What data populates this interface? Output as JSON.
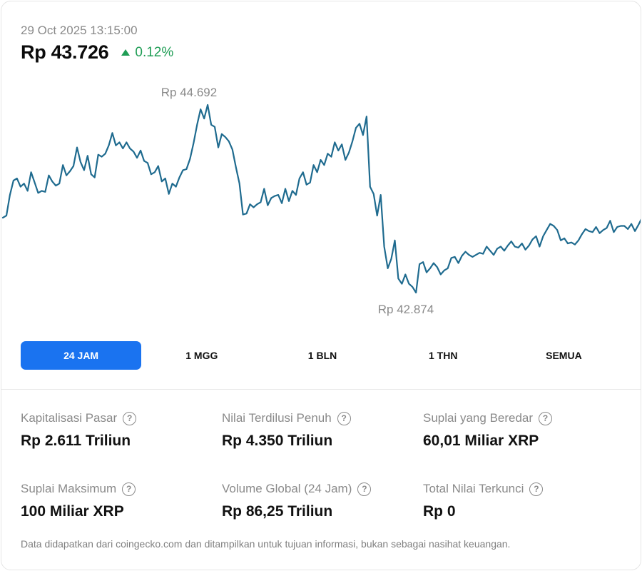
{
  "header": {
    "timestamp": "29 Oct 2025 13:15:00",
    "price": "Rp 43.726",
    "change": "0.12%",
    "change_direction": "up",
    "change_icon": "triangle-up-icon",
    "change_color": "#1f9d55"
  },
  "chart_data": {
    "type": "line",
    "series": [
      {
        "values": [
          43600,
          43620,
          43820,
          43960,
          43980,
          43900,
          43930,
          43860,
          44040,
          43940,
          43840,
          43860,
          43850,
          44010,
          43950,
          43910,
          43930,
          44110,
          44010,
          44050,
          44100,
          44280,
          44140,
          44060,
          44200,
          44020,
          43990,
          44210,
          44190,
          44220,
          44300,
          44420,
          44300,
          44330,
          44270,
          44330,
          44270,
          44240,
          44180,
          44250,
          44150,
          44130,
          44020,
          44040,
          44100,
          43950,
          43980,
          43830,
          43930,
          43900,
          43990,
          44060,
          44070,
          44170,
          44320,
          44500,
          44650,
          44560,
          44692,
          44500,
          44480,
          44280,
          44410,
          44380,
          44340,
          44260,
          44090,
          43930,
          43630,
          43640,
          43730,
          43700,
          43730,
          43750,
          43880,
          43720,
          43790,
          43810,
          43820,
          43740,
          43880,
          43760,
          43860,
          43820,
          43980,
          44040,
          43920,
          43940,
          44110,
          44040,
          44160,
          44110,
          44220,
          44190,
          44330,
          44250,
          44310,
          44160,
          44230,
          44340,
          44470,
          44510,
          44400,
          44580,
          43900,
          43830,
          43620,
          43820,
          43320,
          43110,
          43200,
          43380,
          43010,
          42960,
          43050,
          42960,
          42930,
          42874,
          43150,
          43170,
          43070,
          43110,
          43160,
          43120,
          43050,
          43090,
          43110,
          43210,
          43220,
          43160,
          43230,
          43270,
          43240,
          43220,
          43240,
          43260,
          43250,
          43320,
          43280,
          43240,
          43300,
          43320,
          43280,
          43330,
          43370,
          43320,
          43310,
          43350,
          43290,
          43330,
          43390,
          43420,
          43320,
          43420,
          43480,
          43540,
          43520,
          43480,
          43380,
          43400,
          43350,
          43360,
          43340,
          43380,
          43440,
          43490,
          43470,
          43460,
          43510,
          43450,
          43480,
          43500,
          43570,
          43460,
          43510,
          43520,
          43520,
          43490,
          43540,
          43470,
          43530,
          43600
        ]
      }
    ],
    "annotations": {
      "max_label": "Rp 44.692",
      "min_label": "Rp 42.874"
    },
    "ylim": [
      42874,
      44692
    ],
    "line_color": "#1f6b8f",
    "grid": false
  },
  "range_tabs": [
    {
      "label": "24 JAM",
      "active": true
    },
    {
      "label": "1 MGG",
      "active": false
    },
    {
      "label": "1 BLN",
      "active": false
    },
    {
      "label": "1 THN",
      "active": false
    },
    {
      "label": "SEMUA",
      "active": false
    }
  ],
  "accent_color": "#1a73f0",
  "stats": [
    {
      "label": "Kapitalisasi Pasar",
      "value": "Rp 2.611 Triliun"
    },
    {
      "label": "Nilai Terdilusi Penuh",
      "value": "Rp 4.350 Triliun"
    },
    {
      "label": "Suplai yang Beredar",
      "value": "60,01 Miliar XRP"
    },
    {
      "label": "Suplai Maksimum",
      "value": "100 Miliar XRP"
    },
    {
      "label": "Volume Global (24 Jam)",
      "value": "Rp 86,25 Triliun"
    },
    {
      "label": "Total Nilai Terkunci",
      "value": "Rp 0"
    }
  ],
  "help_icon": "question-circle-icon",
  "help_glyph": "?",
  "footer": {
    "disclaimer": "Data didapatkan dari coingecko.com dan ditampilkan untuk tujuan informasi, bukan sebagai nasihat keuangan."
  }
}
